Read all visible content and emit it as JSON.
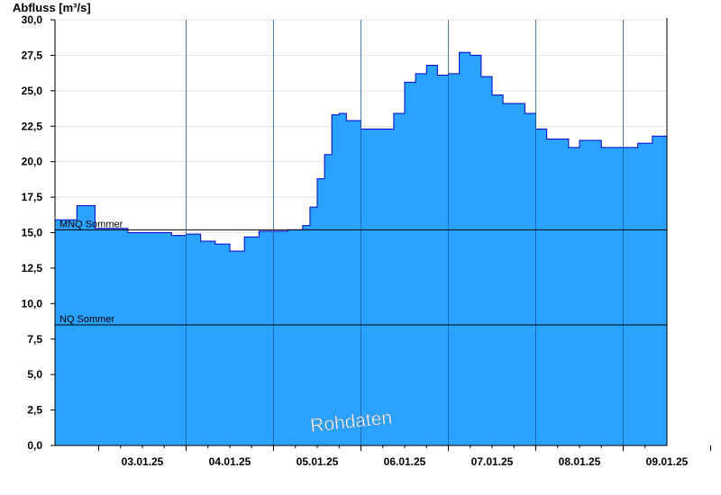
{
  "chart_data": {
    "type": "area",
    "ylabel": "Abfluss [m³/s]",
    "ylim": [
      0,
      30
    ],
    "yticks": [
      "0,0",
      "2,5",
      "5,0",
      "7,5",
      "10,0",
      "12,5",
      "15,0",
      "17,5",
      "20,0",
      "22,5",
      "25,0",
      "27,5",
      "30,0"
    ],
    "xlim": [
      "02.01.25 12:00",
      "09.01.25 12:00"
    ],
    "xtick_labels": [
      "03.01.25",
      "04.01.25",
      "05.01.25",
      "06.01.25",
      "07.01.25",
      "08.01.25",
      "09.01.25"
    ],
    "grid": true,
    "series": [
      {
        "color": "#29a3ff",
        "line_color": "#0000cc",
        "x": [
          "02.01.25 12:00",
          "02.01.25 15:00",
          "02.01.25 18:00",
          "02.01.25 20:00",
          "02.01.25 23:00",
          "03.01.25 02:00",
          "03.01.25 05:00",
          "03.01.25 08:00",
          "03.01.25 12:00",
          "03.01.25 16:00",
          "03.01.25 20:00",
          "04.01.25 00:00",
          "04.01.25 04:00",
          "04.01.25 08:00",
          "04.01.25 12:00",
          "04.01.25 16:00",
          "04.01.25 20:00",
          "05.01.25 00:00",
          "05.01.25 04:00",
          "05.01.25 08:00",
          "05.01.25 10:00",
          "05.01.25 12:00",
          "05.01.25 14:00",
          "05.01.25 16:00",
          "05.01.25 18:00",
          "05.01.25 20:00",
          "05.01.25 22:00",
          "06.01.25 00:00",
          "06.01.25 03:00",
          "06.01.25 06:00",
          "06.01.25 09:00",
          "06.01.25 12:00",
          "06.01.25 15:00",
          "06.01.25 18:00",
          "06.01.25 21:00",
          "07.01.25 00:00",
          "07.01.25 03:00",
          "07.01.25 06:00",
          "07.01.25 09:00",
          "07.01.25 12:00",
          "07.01.25 15:00",
          "07.01.25 18:00",
          "07.01.25 21:00",
          "08.01.25 00:00",
          "08.01.25 03:00",
          "08.01.25 06:00",
          "08.01.25 09:00",
          "08.01.25 12:00",
          "08.01.25 15:00",
          "08.01.25 18:00",
          "08.01.25 21:00",
          "09.01.25 00:00",
          "09.01.25 04:00",
          "09.01.25 08:00",
          "09.01.25 12:00"
        ],
        "values": [
          15.9,
          15.9,
          16.9,
          16.9,
          15.3,
          15.3,
          15.3,
          15.0,
          15.0,
          15.0,
          14.8,
          14.9,
          14.4,
          14.2,
          13.7,
          14.7,
          15.1,
          15.1,
          15.2,
          15.5,
          16.8,
          18.8,
          20.5,
          23.3,
          23.4,
          22.9,
          22.9,
          22.3,
          22.3,
          22.3,
          23.4,
          25.6,
          26.2,
          26.8,
          26.1,
          26.2,
          27.7,
          27.5,
          26.0,
          24.7,
          24.1,
          24.1,
          23.4,
          22.3,
          21.6,
          21.6,
          21.0,
          21.5,
          21.5,
          21.0,
          21.0,
          21.0,
          21.3,
          21.8,
          23.5
        ]
      }
    ],
    "reference_lines": [
      {
        "label": "MNQ Sommer",
        "value": 15.2
      },
      {
        "label": "NQ Sommer",
        "value": 8.5
      }
    ],
    "watermark": "Rohdaten"
  }
}
